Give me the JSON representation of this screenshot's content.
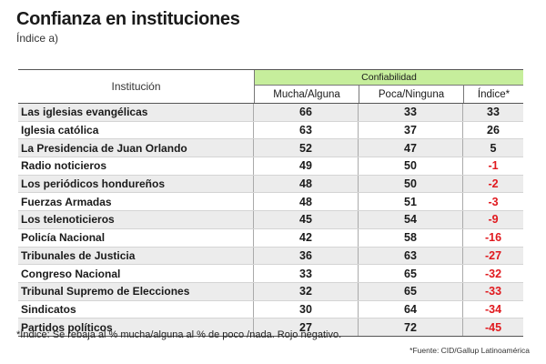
{
  "title": "Confianza en instituciones",
  "subtitle": "Índice a)",
  "header": {
    "institution": "Institución",
    "group": "Confiabilidad",
    "col_much": "Mucha/Alguna",
    "col_little": "Poca/Ninguna",
    "col_index": "Índice*"
  },
  "colors": {
    "group_header_bg": "#c6ee9c",
    "negative": "#e0191e"
  },
  "chart_data": {
    "type": "table",
    "title": "Confianza en instituciones",
    "columns": [
      "Institución",
      "Mucha/Alguna",
      "Poca/Ninguna",
      "Índice*"
    ],
    "rows": [
      {
        "institution": "Las iglesias evangélicas",
        "much": 66,
        "little": 33,
        "index": 33
      },
      {
        "institution": "Iglesia católica",
        "much": 63,
        "little": 37,
        "index": 26
      },
      {
        "institution": "La Presidencia de Juan Orlando",
        "much": 52,
        "little": 47,
        "index": 5
      },
      {
        "institution": "Radio noticieros",
        "much": 49,
        "little": 50,
        "index": -1
      },
      {
        "institution": "Los periódicos hondureños",
        "much": 48,
        "little": 50,
        "index": -2
      },
      {
        "institution": "Fuerzas Armadas",
        "much": 48,
        "little": 51,
        "index": -3
      },
      {
        "institution": "Los telenoticieros",
        "much": 45,
        "little": 54,
        "index": -9
      },
      {
        "institution": "Policía Nacional",
        "much": 42,
        "little": 58,
        "index": -16
      },
      {
        "institution": "Tribunales de Justicia",
        "much": 36,
        "little": 63,
        "index": -27
      },
      {
        "institution": "Congreso Nacional",
        "much": 33,
        "little": 65,
        "index": -32
      },
      {
        "institution": "Tribunal Supremo de Elecciones",
        "much": 32,
        "little": 65,
        "index": -33
      },
      {
        "institution": "Sindicatos",
        "much": 30,
        "little": 64,
        "index": -34
      },
      {
        "institution": "Partidos políticos",
        "much": 27,
        "little": 72,
        "index": -45
      }
    ]
  },
  "note": "*Índice: Se rebaja al % mucha/alguna al % de poco /nada. Rojo negativo.",
  "source": "*Fuente: CID/Gallup Latinoamérica"
}
